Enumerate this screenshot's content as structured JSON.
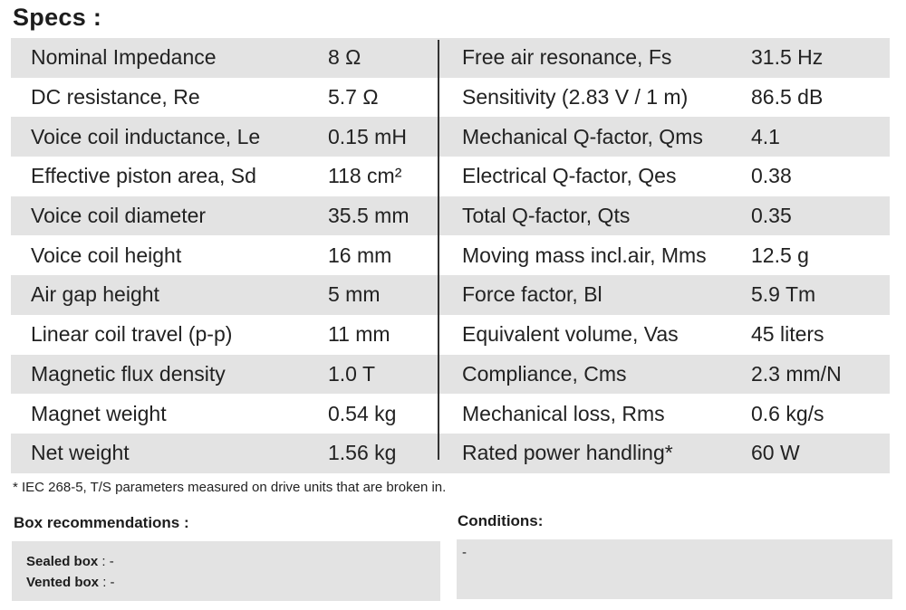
{
  "title": "Specs :",
  "specs": [
    {
      "label_left": "Nominal Impedance",
      "value_left": "8 Ω",
      "label_right": "Free air resonance, Fs",
      "value_right": "31.5 Hz"
    },
    {
      "label_left": "DC resistance, Re",
      "value_left": "5.7 Ω",
      "label_right": "Sensitivity (2.83 V / 1 m)",
      "value_right": "86.5 dB"
    },
    {
      "label_left": "Voice coil inductance, Le",
      "value_left": "0.15 mH",
      "label_right": "Mechanical Q-factor, Qms",
      "value_right": "4.1"
    },
    {
      "label_left": "Effective piston area, Sd",
      "value_left": "118 cm²",
      "label_right": "Electrical Q-factor, Qes",
      "value_right": "0.38"
    },
    {
      "label_left": "Voice coil diameter",
      "value_left": "35.5 mm",
      "label_right": "Total Q-factor, Qts",
      "value_right": "0.35"
    },
    {
      "label_left": "Voice coil height",
      "value_left": "16 mm",
      "label_right": "Moving mass incl.air, Mms",
      "value_right": "12.5 g"
    },
    {
      "label_left": "Air gap height",
      "value_left": "5 mm",
      "label_right": "Force factor, Bl",
      "value_right": "5.9 Tm"
    },
    {
      "label_left": "Linear coil travel (p-p)",
      "value_left": "11 mm",
      "label_right": "Equivalent volume, Vas",
      "value_right": "45 liters"
    },
    {
      "label_left": "Magnetic flux density",
      "value_left": "1.0 T",
      "label_right": "Compliance, Cms",
      "value_right": "2.3 mm/N"
    },
    {
      "label_left": "Magnet weight",
      "value_left": "0.54 kg",
      "label_right": "Mechanical loss, Rms",
      "value_right": "0.6 kg/s"
    },
    {
      "label_left": "Net weight",
      "value_left": "1.56 kg",
      "label_right": "Rated power handling*",
      "value_right": "60 W"
    }
  ],
  "footnote": "* IEC 268-5, T/S parameters measured on drive units that are broken in.",
  "box_recommendations": {
    "heading": "Box  recommendations :",
    "sealed_label": "Sealed box",
    "sealed_value": " : -",
    "vented_label": "Vented box",
    "vented_value": " : -"
  },
  "conditions": {
    "heading": "Conditions:",
    "value": "-"
  }
}
